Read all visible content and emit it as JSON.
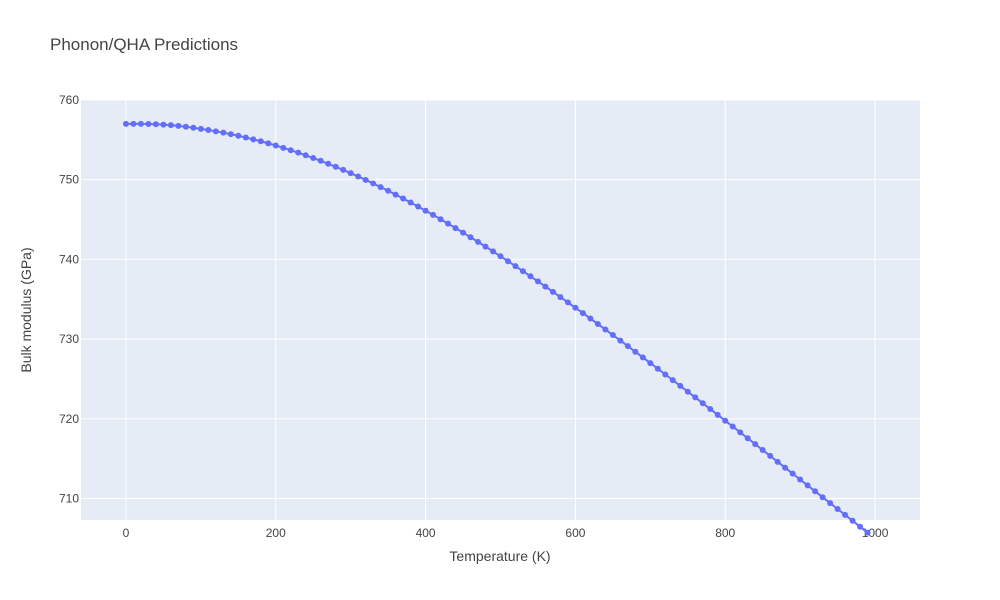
{
  "chart_data": {
    "type": "scatter",
    "mode": "lines+markers",
    "title": "Phonon/QHA Predictions",
    "xlabel": "Temperature (K)",
    "ylabel": "Bulk modulus (GPa)",
    "xlim": [
      -60,
      1060
    ],
    "ylim": [
      707.3,
      760
    ],
    "xticks": [
      0,
      200,
      400,
      600,
      800,
      1000
    ],
    "yticks": [
      710,
      720,
      730,
      740,
      750,
      760
    ],
    "grid": true,
    "legend": "none",
    "colors": {
      "plot_bg": "#e5ecf6",
      "grid": "#ffffff",
      "series": "#636efa",
      "text": "#444444"
    },
    "series": [
      {
        "x": [
          0,
          10,
          20,
          30,
          40,
          50,
          60,
          70,
          80,
          90,
          100,
          110,
          120,
          130,
          140,
          150,
          160,
          170,
          180,
          190,
          200,
          210,
          220,
          230,
          240,
          250,
          260,
          270,
          280,
          290,
          300,
          310,
          320,
          330,
          340,
          350,
          360,
          370,
          380,
          390,
          400,
          410,
          420,
          430,
          440,
          450,
          460,
          470,
          480,
          490,
          500,
          510,
          520,
          530,
          540,
          550,
          560,
          570,
          580,
          590,
          600,
          610,
          620,
          630,
          640,
          650,
          660,
          670,
          680,
          690,
          700,
          710,
          720,
          730,
          740,
          750,
          760,
          770,
          780,
          790,
          800,
          810,
          820,
          830,
          840,
          850,
          860,
          870,
          880,
          890,
          900,
          910,
          920,
          930,
          940,
          950,
          960,
          970,
          980,
          990
        ],
        "y": [
          757.0,
          757.0,
          757.0,
          756.99,
          756.96,
          756.91,
          756.84,
          756.75,
          756.64,
          756.52,
          756.38,
          756.23,
          756.07,
          755.9,
          755.71,
          755.51,
          755.29,
          755.06,
          754.82,
          754.56,
          754.29,
          754.0,
          753.7,
          753.39,
          753.06,
          752.72,
          752.37,
          752.0,
          751.62,
          751.23,
          750.82,
          750.4,
          749.97,
          749.53,
          749.07,
          748.61,
          748.13,
          747.64,
          747.14,
          746.63,
          746.11,
          745.58,
          745.04,
          744.49,
          743.93,
          743.36,
          742.78,
          742.2,
          741.6,
          741.0,
          740.39,
          739.77,
          739.15,
          738.52,
          737.88,
          737.24,
          736.59,
          735.93,
          735.27,
          734.6,
          733.93,
          733.26,
          732.58,
          731.89,
          731.2,
          730.51,
          729.81,
          729.11,
          728.41,
          727.7,
          726.99,
          726.28,
          725.56,
          724.85,
          724.13,
          723.4,
          722.68,
          721.95,
          721.22,
          720.49,
          719.76,
          719.03,
          718.29,
          717.56,
          716.82,
          716.08,
          715.34,
          714.6,
          713.86,
          713.12,
          712.38,
          711.64,
          710.9,
          710.16,
          709.42,
          708.68,
          707.94,
          707.2,
          706.46,
          705.72
        ]
      }
    ]
  }
}
